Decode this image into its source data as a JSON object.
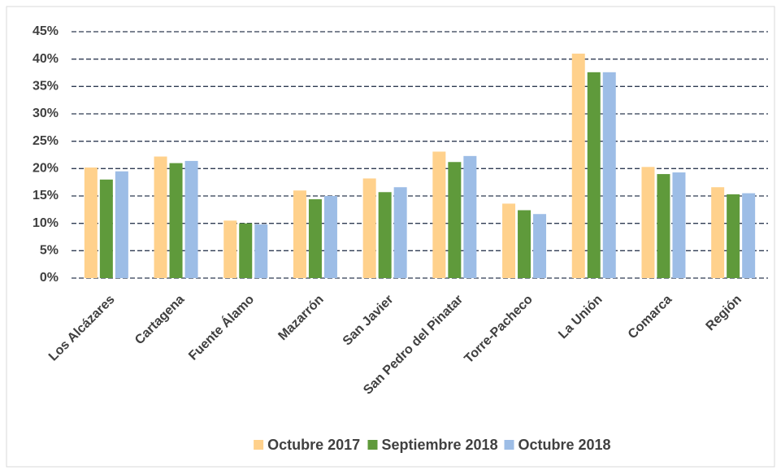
{
  "chart_data": {
    "type": "bar",
    "categories": [
      "Los Alcázares",
      "Cartagena",
      "Fuente Álamo",
      "Mazarrón",
      "San Javier",
      "San Pedro del Pinatar",
      "Torre-Pacheco",
      "La Unión",
      "Comarca",
      "Región"
    ],
    "series": [
      {
        "name": "Octubre 2017",
        "color": "#ffd18c",
        "values": [
          20.2,
          22.2,
          10.5,
          16,
          18.2,
          23.1,
          13.6,
          41,
          20.3,
          16.6
        ]
      },
      {
        "name": "Septiembre 2018",
        "color": "#5f9a3b",
        "values": [
          18,
          21,
          10,
          14.4,
          15.7,
          21.2,
          12.4,
          37.6,
          19,
          15.3
        ]
      },
      {
        "name": "Octubre 2018",
        "color": "#9dbde6",
        "values": [
          19.5,
          21.4,
          9.8,
          15,
          16.6,
          22.3,
          11.7,
          37.6,
          19.3,
          15.5
        ]
      }
    ],
    "ylim": [
      0,
      45
    ],
    "yticks": [
      {
        "value": 0,
        "label": "0%"
      },
      {
        "value": 5,
        "label": "5%"
      },
      {
        "value": 10,
        "label": "10%"
      },
      {
        "value": 15,
        "label": "15%"
      },
      {
        "value": 20,
        "label": "20%"
      },
      {
        "value": 25,
        "label": "25%"
      },
      {
        "value": 30,
        "label": "30%"
      },
      {
        "value": 35,
        "label": "35%"
      },
      {
        "value": 40,
        "label": "40%"
      },
      {
        "value": 45,
        "label": "45%"
      }
    ],
    "grid": true,
    "legend": "bottom"
  }
}
